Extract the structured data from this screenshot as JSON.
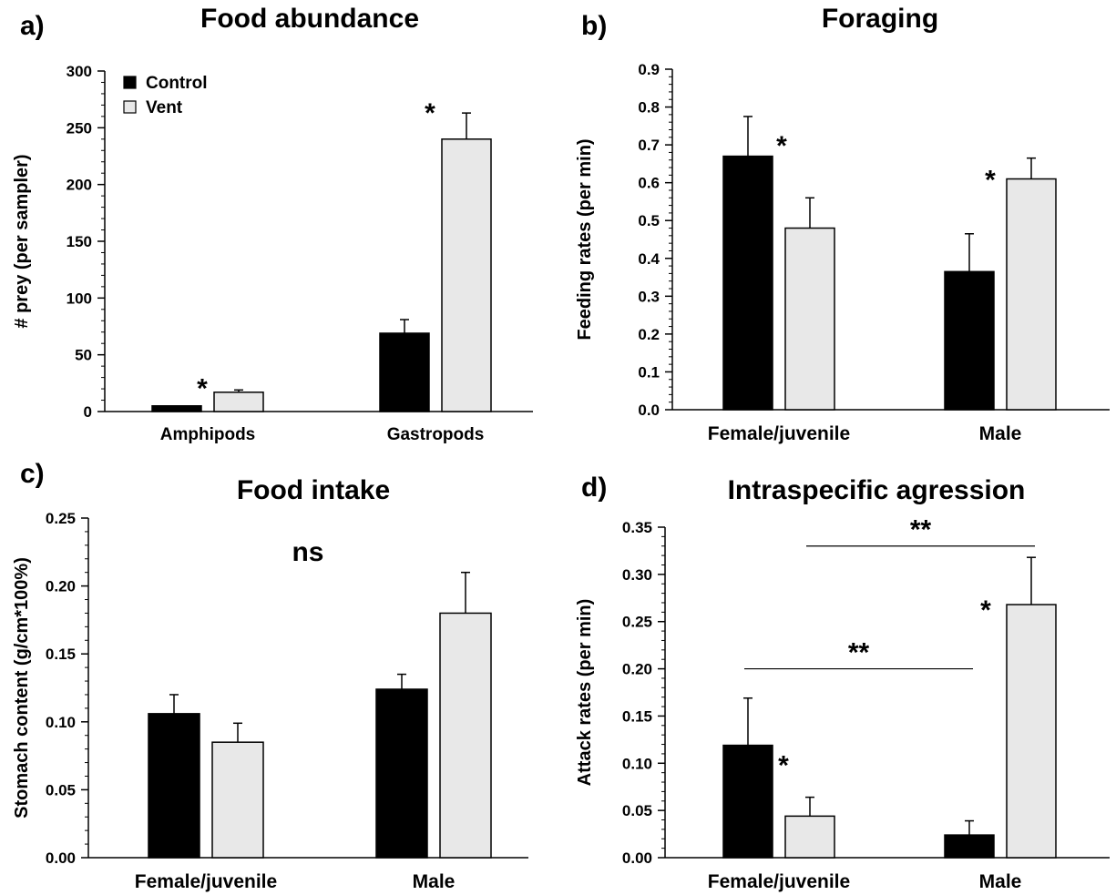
{
  "colors": {
    "control": "#000000",
    "vent": "#e8e8e8",
    "outline": "#000000"
  },
  "chart_data": [
    {
      "panel": "a)",
      "type": "bar",
      "title": "Food abundance",
      "ylabel": "# prey (per sampler)",
      "xlabel": "",
      "ylim": [
        0,
        300
      ],
      "yticks": [
        "0",
        "50",
        "100",
        "150",
        "200",
        "250",
        "300"
      ],
      "categories": [
        "Amphipods",
        "Gastropods"
      ],
      "legend": {
        "placement": "top-left",
        "entries": [
          "Control",
          "Vent"
        ]
      },
      "series": [
        {
          "name": "Control",
          "values": [
            5,
            69
          ],
          "errors": [
            0,
            12
          ]
        },
        {
          "name": "Vent",
          "values": [
            17,
            240
          ],
          "errors": [
            2,
            23
          ]
        }
      ],
      "annotations": [
        {
          "text": "*",
          "category": 0,
          "series": 1
        },
        {
          "text": "*",
          "category": 1,
          "series": 1
        }
      ]
    },
    {
      "panel": "b)",
      "type": "bar",
      "title": "Foraging",
      "ylabel": "Feeding rates (per min)",
      "xlabel": "",
      "ylim": [
        0,
        0.9
      ],
      "yticks": [
        "0.0",
        "0.1",
        "0.2",
        "0.3",
        "0.4",
        "0.5",
        "0.6",
        "0.7",
        "0.8",
        "0.9"
      ],
      "categories": [
        "Female/juvenile",
        "Male"
      ],
      "series": [
        {
          "name": "Control",
          "values": [
            0.67,
            0.365
          ],
          "errors": [
            0.105,
            0.1
          ]
        },
        {
          "name": "Vent",
          "values": [
            0.48,
            0.61
          ],
          "errors": [
            0.08,
            0.055
          ]
        }
      ],
      "annotations": [
        {
          "text": "*",
          "category": 0,
          "series": 0
        },
        {
          "text": "*",
          "category": 1,
          "series": 1
        }
      ]
    },
    {
      "panel": "c)",
      "type": "bar",
      "title": "Food intake",
      "ylabel": "Stomach content (g/cm*100%)",
      "xlabel": "",
      "ylim": [
        0,
        0.25
      ],
      "yticks": [
        "0.00",
        "0.05",
        "0.10",
        "0.15",
        "0.20",
        "0.25"
      ],
      "categories": [
        "Female/juvenile",
        "Male"
      ],
      "series": [
        {
          "name": "Control",
          "values": [
            0.106,
            0.124
          ],
          "errors": [
            0.014,
            0.011
          ]
        },
        {
          "name": "Vent",
          "values": [
            0.085,
            0.18
          ],
          "errors": [
            0.014,
            0.03
          ]
        }
      ],
      "annotations": [
        {
          "text": "ns"
        }
      ]
    },
    {
      "panel": "d)",
      "type": "bar",
      "title": "Intraspecific agression",
      "ylabel": "Attack rates (per min)",
      "xlabel": "",
      "ylim": [
        0,
        0.35
      ],
      "yticks": [
        "0.00",
        "0.05",
        "0.10",
        "0.15",
        "0.20",
        "0.25",
        "0.30",
        "0.35"
      ],
      "categories": [
        "Female/juvenile",
        "Male"
      ],
      "series": [
        {
          "name": "Control",
          "values": [
            0.119,
            0.024
          ],
          "errors": [
            0.05,
            0.015
          ]
        },
        {
          "name": "Vent",
          "values": [
            0.044,
            0.268
          ],
          "errors": [
            0.02,
            0.05
          ]
        }
      ],
      "annotations": [
        {
          "text": "*",
          "category": 0,
          "series": 0
        },
        {
          "text": "*",
          "category": 1,
          "series": 1
        },
        {
          "text": "**",
          "type": "bracket",
          "from": [
            0,
            0
          ],
          "to": [
            1,
            0
          ],
          "level": 0.2
        },
        {
          "text": "**",
          "type": "bracket",
          "from": [
            0,
            1
          ],
          "to": [
            1,
            1
          ],
          "level": 0.33
        }
      ]
    }
  ]
}
